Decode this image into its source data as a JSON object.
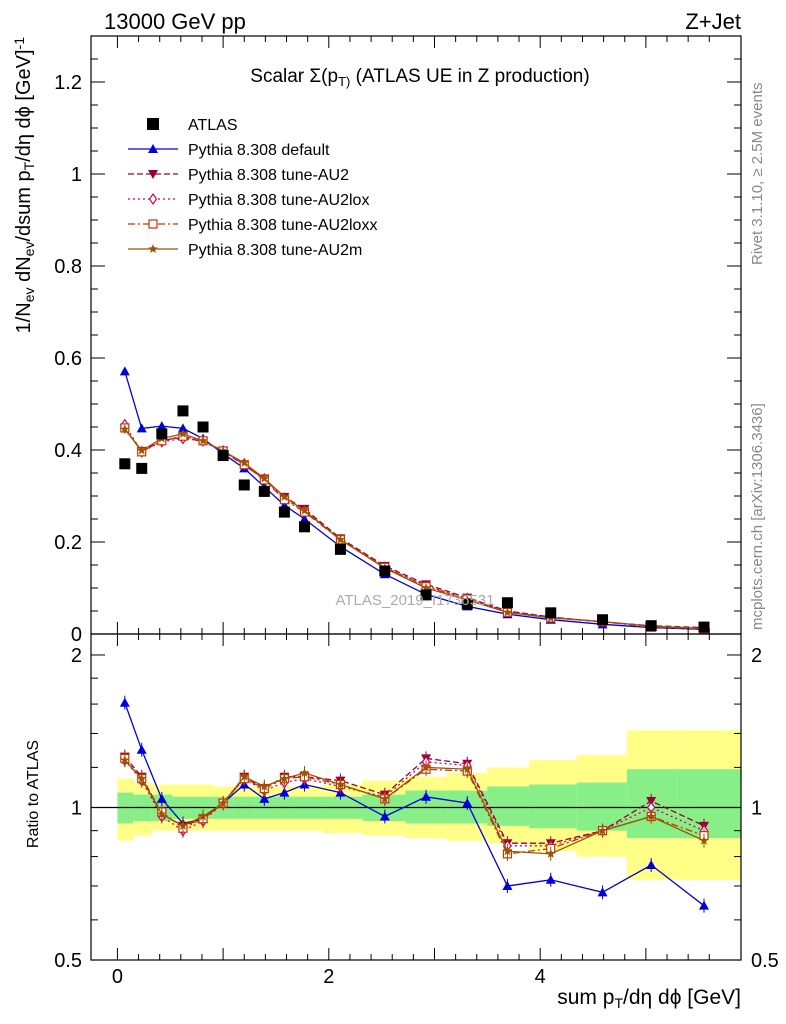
{
  "header": {
    "energy_label": "13000 GeV pp",
    "process_label": "Z+Jet"
  },
  "side_text": {
    "rivet": "Rivet 3.1.10, ≥ 2.5M events",
    "mcplots": "mcplots.cern.ch [arXiv:1306.3436]"
  },
  "watermark": "ATLAS_2019_I1736531",
  "chart_data": [
    {
      "type": "scatter",
      "title": "Scalar Σ(p_T) (ATLAS UE in Z production)",
      "xlabel": "sum p_T/dη dϕ [GeV]",
      "ylabel": "1/N_ev dN_ev/dsum p_T/dη dϕ [GeV]^-1",
      "xlim": [
        -0.25,
        5.9
      ],
      "ylim": [
        0,
        1.3
      ],
      "x_ticks": [
        "0",
        "2",
        "4"
      ],
      "y_ticks": [
        "0",
        "0.2",
        "0.4",
        "0.6",
        "0.8",
        "1",
        "1.2"
      ],
      "grid": false,
      "legend_position": "top-left",
      "x": [
        0.07,
        0.23,
        0.42,
        0.62,
        0.81,
        1.0,
        1.2,
        1.39,
        1.58,
        1.77,
        2.11,
        2.53,
        2.92,
        3.31,
        3.69,
        4.1,
        4.59,
        5.05,
        5.55
      ],
      "series": [
        {
          "name": "ATLAS",
          "color": "#000000",
          "style": "data",
          "values": [
            0.37,
            0.36,
            0.435,
            0.485,
            0.45,
            0.388,
            0.324,
            0.31,
            0.265,
            0.233,
            0.184,
            0.137,
            0.085,
            0.065,
            0.068,
            0.046,
            0.031,
            0.018,
            0.015
          ]
        },
        {
          "name": "Pythia 8.308 default",
          "color": "#0000dd",
          "style": "solid",
          "marker": "triangle-up",
          "values": [
            0.571,
            0.447,
            0.452,
            0.447,
            0.425,
            0.392,
            0.36,
            0.32,
            0.28,
            0.25,
            0.19,
            0.13,
            0.086,
            0.06,
            0.043,
            0.031,
            0.021,
            0.014,
            0.01
          ]
        },
        {
          "name": "Pythia 8.308 tune-AU2",
          "color": "#990033",
          "style": "dashed",
          "marker": "triangle-down",
          "values": [
            0.446,
            0.398,
            0.42,
            0.428,
            0.418,
            0.398,
            0.366,
            0.338,
            0.298,
            0.272,
            0.208,
            0.148,
            0.108,
            0.079,
            0.05,
            0.037,
            0.026,
            0.018,
            0.014
          ]
        },
        {
          "name": "Pythia 8.308 tune-AU2lox",
          "color": "#cc0066",
          "style": "dotted",
          "marker": "diamond",
          "values": [
            0.455,
            0.396,
            0.418,
            0.425,
            0.42,
            0.398,
            0.37,
            0.337,
            0.294,
            0.268,
            0.205,
            0.145,
            0.105,
            0.077,
            0.049,
            0.036,
            0.027,
            0.017,
            0.012
          ]
        },
        {
          "name": "Pythia 8.308 tune-AU2loxx",
          "color": "#cc3300",
          "style": "dashdot",
          "marker": "square-open",
          "values": [
            0.448,
            0.396,
            0.42,
            0.43,
            0.42,
            0.398,
            0.368,
            0.335,
            0.292,
            0.265,
            0.205,
            0.145,
            0.103,
            0.076,
            0.047,
            0.035,
            0.027,
            0.015,
            0.011
          ]
        },
        {
          "name": "Pythia 8.308 tune-AU2m",
          "color": "#995500",
          "style": "solid",
          "marker": "star",
          "values": [
            0.445,
            0.399,
            0.425,
            0.435,
            0.42,
            0.398,
            0.372,
            0.338,
            0.298,
            0.268,
            0.205,
            0.143,
            0.1,
            0.074,
            0.047,
            0.035,
            0.027,
            0.017,
            0.012
          ]
        }
      ]
    },
    {
      "type": "line",
      "ylabel": "Ratio to ATLAS",
      "xlim": [
        -0.25,
        5.9
      ],
      "ylim": [
        0.5,
        2.2
      ],
      "y_scale": "log",
      "y_ticks": [
        "0.5",
        "1",
        "2"
      ],
      "reference_line": 1,
      "bands": {
        "inner_color": "#88ee88",
        "outer_color": "#ffff88",
        "inner": [
          [
            0.93,
            1.07
          ],
          [
            0.94,
            1.06
          ],
          [
            0.94,
            1.06
          ],
          [
            0.95,
            1.05
          ],
          [
            0.95,
            1.05
          ],
          [
            0.95,
            1.05
          ],
          [
            0.95,
            1.05
          ],
          [
            0.95,
            1.05
          ],
          [
            0.95,
            1.05
          ],
          [
            0.95,
            1.05
          ],
          [
            0.95,
            1.05
          ],
          [
            0.94,
            1.06
          ],
          [
            0.93,
            1.08
          ],
          [
            0.93,
            1.08
          ],
          [
            0.92,
            1.1
          ],
          [
            0.91,
            1.11
          ],
          [
            0.9,
            1.12
          ],
          [
            0.87,
            1.19
          ],
          [
            0.87,
            1.19
          ]
        ],
        "outer": [
          [
            0.86,
            1.14
          ],
          [
            0.88,
            1.12
          ],
          [
            0.9,
            1.11
          ],
          [
            0.9,
            1.11
          ],
          [
            0.9,
            1.11
          ],
          [
            0.9,
            1.1
          ],
          [
            0.9,
            1.1
          ],
          [
            0.9,
            1.1
          ],
          [
            0.9,
            1.1
          ],
          [
            0.9,
            1.1
          ],
          [
            0.89,
            1.11
          ],
          [
            0.88,
            1.13
          ],
          [
            0.87,
            1.15
          ],
          [
            0.86,
            1.17
          ],
          [
            0.85,
            1.2
          ],
          [
            0.82,
            1.24
          ],
          [
            0.8,
            1.27
          ],
          [
            0.72,
            1.42
          ],
          [
            0.72,
            1.42
          ]
        ]
      },
      "series": [
        {
          "name": "Pythia 8.308 default",
          "values": [
            1.61,
            1.3,
            1.04,
            0.93,
            0.95,
            1.02,
            1.11,
            1.04,
            1.07,
            1.11,
            1.07,
            0.96,
            1.05,
            1.02,
            0.7,
            0.72,
            0.68,
            0.77,
            0.64
          ]
        },
        {
          "name": "Pythia 8.308 tune-AU2",
          "values": [
            1.26,
            1.15,
            0.97,
            0.92,
            0.95,
            1.02,
            1.15,
            1.09,
            1.15,
            1.15,
            1.13,
            1.06,
            1.25,
            1.22,
            0.85,
            0.85,
            0.9,
            1.03,
            0.92
          ]
        },
        {
          "name": "Pythia 8.308 tune-AU2lox",
          "values": [
            1.24,
            1.13,
            0.96,
            0.9,
            0.94,
            1.02,
            1.14,
            1.08,
            1.12,
            1.14,
            1.1,
            1.05,
            1.23,
            1.21,
            0.84,
            0.84,
            0.9,
            1.0,
            0.9
          ]
        },
        {
          "name": "Pythia 8.308 tune-AU2loxx",
          "values": [
            1.25,
            1.14,
            0.98,
            0.91,
            0.95,
            1.02,
            1.14,
            1.09,
            1.14,
            1.15,
            1.11,
            1.04,
            1.19,
            1.18,
            0.81,
            0.83,
            0.9,
            0.96,
            0.88
          ]
        },
        {
          "name": "Pythia 8.308 tune-AU2m",
          "values": [
            1.24,
            1.14,
            0.97,
            0.92,
            0.96,
            1.02,
            1.15,
            1.1,
            1.14,
            1.17,
            1.11,
            1.04,
            1.2,
            1.19,
            0.82,
            0.81,
            0.9,
            0.96,
            0.86
          ]
        }
      ]
    }
  ]
}
